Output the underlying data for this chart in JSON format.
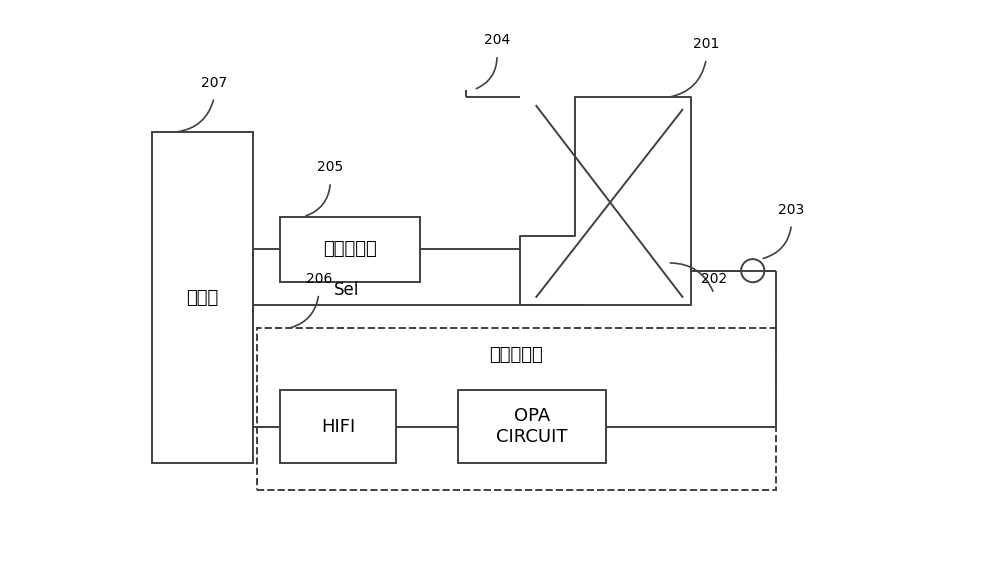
{
  "bg_color": "#ffffff",
  "line_color": "#404040",
  "labels": {
    "processor": "处理器",
    "audio_decoder": "音频解码器",
    "audio_player": "音频播放器",
    "hifi": "HIFI",
    "opa": "OPA\nCIRCUIT",
    "sel": "Sel",
    "n201": "201",
    "n202": "202",
    "n203": "203",
    "n204": "204",
    "n205": "205",
    "n206": "206",
    "n207": "207"
  },
  "font_size_main": 12,
  "font_size_label": 10,
  "font_size_box": 13
}
